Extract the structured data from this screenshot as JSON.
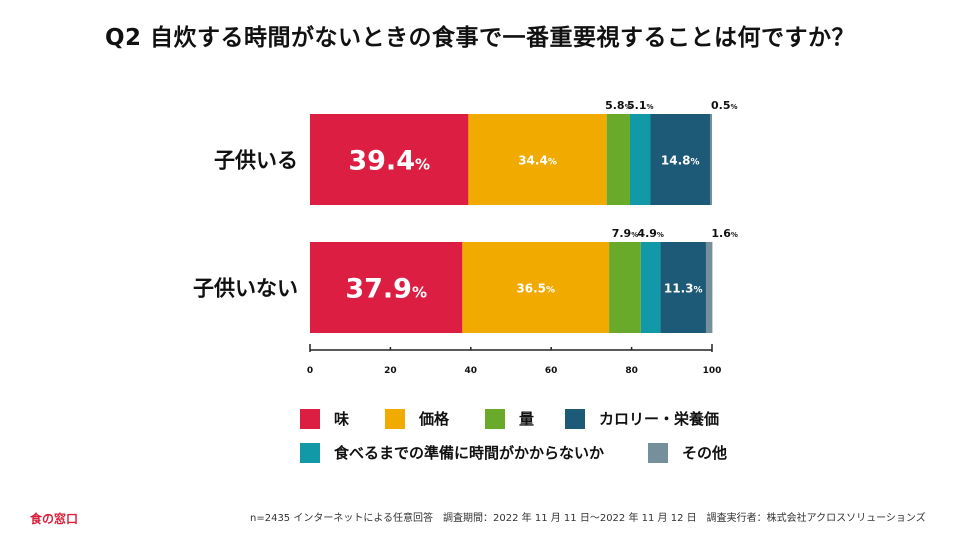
{
  "chart_data": {
    "type": "bar",
    "stacked": true,
    "orientation": "horizontal",
    "title": "Q2 自炊する時間がないときの食事で一番重要視することは何ですか？",
    "categories": [
      "子供いる",
      "子供いない"
    ],
    "series": [
      {
        "name": "味",
        "color": "#dc1e42",
        "values": [
          39.4,
          37.9
        ]
      },
      {
        "name": "価格",
        "color": "#f0aa00",
        "values": [
          34.4,
          36.5
        ]
      },
      {
        "name": "量",
        "color": "#6aaa2a",
        "values": [
          5.8,
          7.9
        ]
      },
      {
        "name": "食べるまでの準備に時間がかからないか",
        "color": "#1199a8",
        "values": [
          5.1,
          4.9
        ]
      },
      {
        "name": "カロリー・栄養価",
        "color": "#1d5a78",
        "values": [
          14.8,
          11.3
        ]
      },
      {
        "name": "その他",
        "color": "#76909b",
        "values": [
          0.5,
          1.6
        ]
      }
    ],
    "xlim": [
      0,
      100
    ],
    "xticks": [
      "0",
      "20",
      "40",
      "60",
      "80",
      "100"
    ],
    "unit": "%",
    "value_labels": [
      [
        "39.4",
        "34.4",
        "5.8",
        "5.1",
        "14.8",
        "0.5"
      ],
      [
        "37.9",
        "36.5",
        "7.9",
        "4.9",
        "11.3",
        "1.6"
      ]
    ]
  },
  "legend": {
    "row1": [
      "味",
      "価格",
      "量",
      "カロリー・栄養価"
    ],
    "row2": [
      "食べるまでの準備に時間がかからないか",
      "その他"
    ]
  },
  "colors": {
    "taste": "#dc1e42",
    "price": "#f0aa00",
    "amount": "#6aaa2a",
    "calorie": "#1d5a78",
    "prep": "#1199a8",
    "other": "#76909b"
  },
  "brand": "食の窓口",
  "footnote": "n=2435 インターネットによる任意回答　調査期間：2022 年 11 月 11 日〜2022 年 11 月 12 日　調査実行者：株式会社アクロスソリューションズ"
}
